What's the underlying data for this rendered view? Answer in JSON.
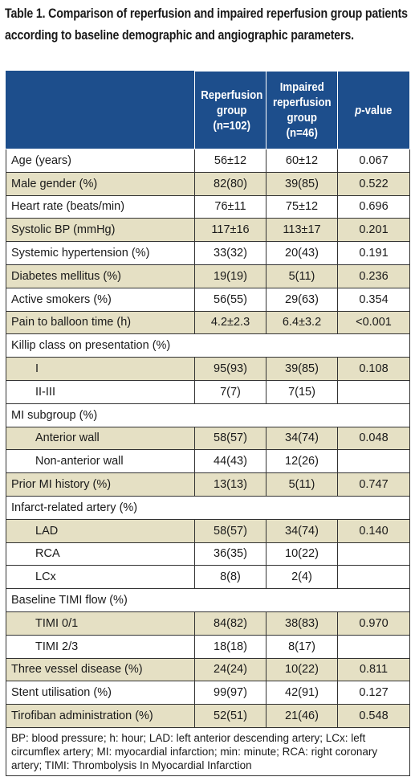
{
  "caption": "Table 1. Comparison of reperfusion and impaired reperfusion group patients according to baseline demographic and angiographic parameters.",
  "header": {
    "col1": "",
    "col2_lines": [
      "Reperfusion",
      "group",
      "(n=102)"
    ],
    "col3_lines": [
      "Impaired",
      "reperfusion",
      "group",
      "(n=46)"
    ],
    "col4_italic": "p",
    "col4_rest": "-value"
  },
  "rows": [
    {
      "label": "Age (years)",
      "a": "56±12",
      "b": "60±12",
      "p": "0.067"
    },
    {
      "label": "Male gender (%)",
      "a": "82(80)",
      "b": "39(85)",
      "p": "0.522"
    },
    {
      "label": "Heart rate (beats/min)",
      "a": "76±11",
      "b": "75±12",
      "p": "0.696"
    },
    {
      "label": "Systolic BP (mmHg)",
      "a": "117±16",
      "b": "113±17",
      "p": "0.201"
    },
    {
      "label": "Systemic hypertension (%)",
      "a": "33(32)",
      "b": "20(43)",
      "p": "0.191"
    },
    {
      "label": "Diabetes mellitus (%)",
      "a": "19(19)",
      "b": "5(11)",
      "p": "0.236"
    },
    {
      "label": "Active smokers (%)",
      "a": "56(55)",
      "b": "29(63)",
      "p": "0.354"
    },
    {
      "label": "Pain to balloon time (h)",
      "a": "4.2±2.3",
      "b": "6.4±3.2",
      "p": "<0.001"
    },
    {
      "label": "Killip class on presentation (%)"
    },
    {
      "label": "I",
      "a": "95(93)",
      "b": "39(85)",
      "p": "0.108"
    },
    {
      "label": "II-III",
      "a": "7(7)",
      "b": "7(15)",
      "p": ""
    },
    {
      "label": "MI subgroup (%)"
    },
    {
      "label": "Anterior wall",
      "a": "58(57)",
      "b": "34(74)",
      "p": "0.048"
    },
    {
      "label": "Non-anterior wall",
      "a": "44(43)",
      "b": "12(26)",
      "p": ""
    },
    {
      "label": "Prior MI history (%)",
      "a": "13(13)",
      "b": "5(11)",
      "p": "0.747"
    },
    {
      "label": "Infarct-related artery (%)"
    },
    {
      "label": "LAD",
      "a": "58(57)",
      "b": "34(74)",
      "p": "0.140"
    },
    {
      "label": "RCA",
      "a": "36(35)",
      "b": "10(22)",
      "p": ""
    },
    {
      "label": "LCx",
      "a": "8(8)",
      "b": "2(4)",
      "p": ""
    },
    {
      "label": "Baseline TIMI flow (%)"
    },
    {
      "label": "TIMI 0/1",
      "a": "84(82)",
      "b": "38(83)",
      "p": "0.970"
    },
    {
      "label": "TIMI 2/3",
      "a": "18(18)",
      "b": "8(17)",
      "p": ""
    },
    {
      "label": "Three vessel disease (%)",
      "a": "24(24)",
      "b": "10(22)",
      "p": "0.811"
    },
    {
      "label": "Stent utilisation (%)",
      "a": "99(97)",
      "b": "42(91)",
      "p": "0.127"
    },
    {
      "label": "Tirofiban administration (%)",
      "a": "52(51)",
      "b": "21(46)",
      "p": "0.548"
    }
  ],
  "footnote": "BP: blood pressure; h: hour; LAD: left anterior descending artery; LCx: left circumflex artery; MI: myocardial infarction; min: minute; RCA: right coronary artery; TIMI: Thrombolysis In Myocardial Infarction"
}
